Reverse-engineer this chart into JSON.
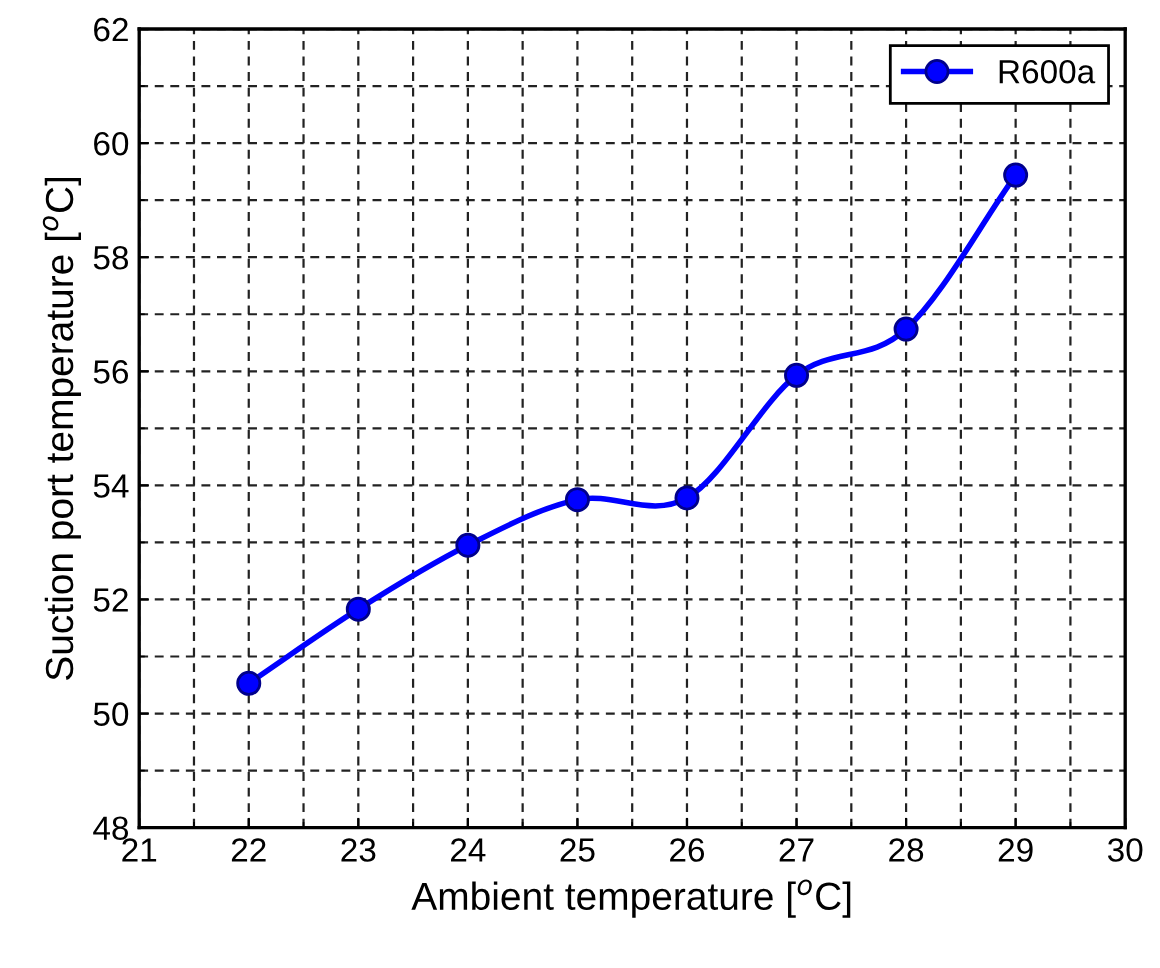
{
  "chart_data": {
    "type": "line",
    "xlabel": "Ambient temperature [$^{o}$C]",
    "ylabel": "Suction port temperature [$^{o}$C]",
    "x": [
      22,
      23,
      24,
      25,
      26,
      27,
      28,
      29
    ],
    "series": [
      {
        "name": "R600a",
        "color": "#0000ff",
        "values": [
          50.53,
          51.83,
          52.95,
          53.75,
          53.78,
          55.93,
          56.74,
          59.44
        ]
      }
    ],
    "xlim": [
      21,
      30
    ],
    "xticks": [
      21,
      22,
      23,
      24,
      25,
      26,
      27,
      28,
      29,
      30
    ],
    "ylim": [
      48,
      62
    ],
    "yticks": [
      48,
      50,
      52,
      54,
      56,
      58,
      60,
      62
    ],
    "grid": true,
    "legend": "top right",
    "marker": "circle",
    "line_style": "solid"
  }
}
